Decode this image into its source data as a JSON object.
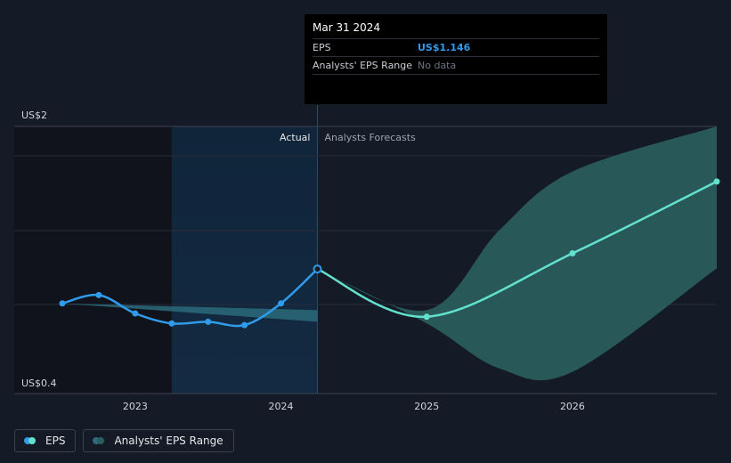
{
  "colors": {
    "background": "#151b26",
    "eps_line": "#2f9bea",
    "forecast_line": "#62e1cd",
    "range_band": "#2c6b7a",
    "forecast_band": "#2a5f5e",
    "past_region": "#10131b",
    "actual_region": "#132a42"
  },
  "chart_data": {
    "type": "line",
    "y_axis": {
      "min_label": "US$0.4",
      "max_label": "US$2",
      "ylim": [
        0.4,
        2.0
      ]
    },
    "x_ticks": [
      2023,
      2024,
      2025,
      2026
    ],
    "xlim": [
      2022.17,
      2026.99
    ],
    "region_labels": {
      "actual": "Actual",
      "forecast": "Analysts Forecasts"
    },
    "divider_x": 2024.25,
    "series": [
      {
        "name": "EPS",
        "kind": "actual",
        "x": [
          2022.5,
          2022.75,
          2023.0,
          2023.25,
          2023.5,
          2023.75,
          2024.0,
          2024.25
        ],
        "y": [
          0.94,
          0.99,
          0.88,
          0.82,
          0.83,
          0.81,
          0.94,
          1.146
        ]
      },
      {
        "name": "Analysts' EPS Range",
        "kind": "actual_range",
        "x": [
          2022.5,
          2024.25
        ],
        "upper": [
          0.94,
          0.9
        ],
        "lower": [
          0.94,
          0.83
        ]
      },
      {
        "kind": "forecast",
        "x": [
          2024.25,
          2025.0,
          2026.0,
          2026.99
        ],
        "y": [
          1.146,
          0.86,
          1.24,
          1.67
        ]
      },
      {
        "kind": "forecast_range",
        "x": [
          2024.25,
          2025.0,
          2025.5,
          2026.0,
          2026.99
        ],
        "upper": [
          1.146,
          0.9,
          1.38,
          1.73,
          2.0
        ],
        "lower": [
          1.146,
          0.82,
          0.55,
          0.53,
          1.15
        ]
      }
    ]
  },
  "tooltip": {
    "date": "Mar 31 2024",
    "eps_label": "EPS",
    "eps_value": "US$1.146",
    "range_label": "Analysts' EPS Range",
    "range_value": "No data"
  },
  "legend": [
    {
      "label": "EPS",
      "colors": [
        "#2f9bea",
        "#62e1cd"
      ]
    },
    {
      "label": "Analysts' EPS Range",
      "colors": [
        "#2c6b7a",
        "#2a5f5e"
      ]
    }
  ]
}
